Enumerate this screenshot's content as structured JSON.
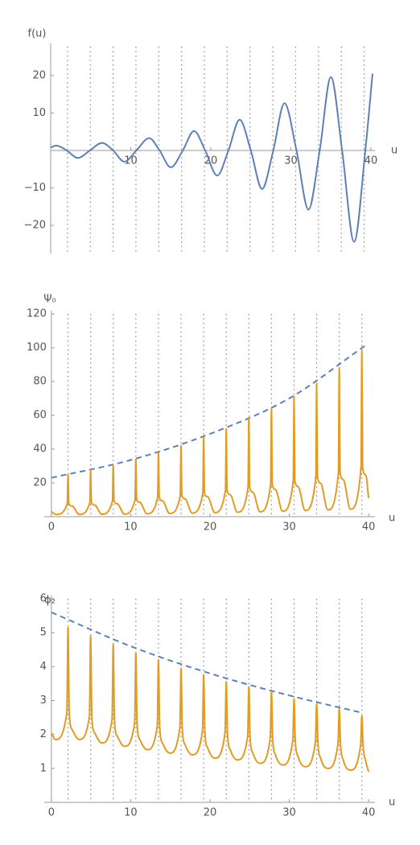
{
  "chart_data": [
    {
      "type": "line",
      "y_label": "f(u)",
      "x_label": "u",
      "xlim": [
        0,
        40.5
      ],
      "ylim": [
        -27.5,
        27.7
      ],
      "xticks": [
        10,
        20,
        30,
        40
      ],
      "yticks": [
        {
          "value": -20,
          "label": "−20"
        },
        {
          "value": -10,
          "label": "−10"
        },
        10,
        20
      ],
      "vlines": [
        2.1,
        4.95,
        7.8,
        10.65,
        13.5,
        16.35,
        19.2,
        22.05,
        24.9,
        27.75,
        30.6,
        33.45,
        36.3,
        39.15
      ],
      "series": [
        {
          "color": "#5e81b5",
          "dashed": false,
          "x": [
            0,
            0.7,
            2,
            3.4,
            4.9,
            6.4,
            7.8,
            9.2,
            10.7,
            12.3,
            13.6,
            15,
            16.5,
            17.9,
            19.3,
            20.8,
            22.2,
            23.6,
            25,
            26.4,
            27.8,
            29.2,
            30.7,
            32.2,
            33.6,
            35,
            36.4,
            37.9,
            39.3,
            40.2
          ],
          "values": [
            0.8,
            1.3,
            0,
            -2,
            0,
            2,
            0,
            -3,
            0,
            3.3,
            0,
            -4.5,
            0,
            5.2,
            0,
            -6.7,
            0,
            8.2,
            0,
            -10.3,
            0,
            12.6,
            0,
            -15.8,
            0,
            19.6,
            0,
            -24.4,
            0,
            20.5
          ]
        }
      ]
    },
    {
      "type": "line",
      "y_label": "Ψ₀",
      "x_label": "u",
      "xlim": [
        -0.9,
        40.8
      ],
      "ylim": [
        0,
        120
      ],
      "xticks": [
        0,
        10,
        20,
        30,
        40
      ],
      "yticks": [
        20,
        40,
        60,
        80,
        100,
        120
      ],
      "vlines": [
        2.1,
        4.95,
        7.8,
        10.65,
        13.5,
        16.35,
        19.2,
        22.05,
        24.9,
        27.75,
        30.6,
        33.45,
        36.3,
        39.15
      ],
      "series": [
        {
          "color": "#5e81b5",
          "dashed": true,
          "x": [
            0,
            10,
            20,
            30,
            39.5
          ],
          "values": [
            23,
            33.5,
            49,
            70,
            101
          ]
        },
        {
          "color": "#e19c24",
          "dashed": false,
          "x": [
            0,
            0.6,
            2.0,
            2.1,
            2.2,
            2.6,
            3.5,
            4.85,
            4.95,
            5.05,
            5.45,
            6.35,
            7.7,
            7.8,
            7.9,
            8.3,
            9.2,
            10.55,
            10.65,
            10.75,
            11.15,
            12.05,
            13.4,
            13.5,
            13.6,
            14,
            14.9,
            16.25,
            16.35,
            16.45,
            16.85,
            17.75,
            19.1,
            19.2,
            19.3,
            19.7,
            20.6,
            21.95,
            22.05,
            22.15,
            22.55,
            23.45,
            24.8,
            24.9,
            25,
            25.4,
            26.3,
            27.65,
            27.75,
            27.85,
            28.25,
            29.15,
            30.5,
            30.6,
            30.7,
            31.1,
            32,
            33.35,
            33.45,
            33.55,
            33.95,
            34.85,
            36.2,
            36.3,
            36.4,
            36.8,
            37.7,
            39.05,
            39.15,
            39.25,
            39.65,
            40
          ],
          "values": [
            3,
            1.3,
            7.5,
            25,
            7.5,
            6.3,
            1.3,
            8.3,
            27.5,
            8.3,
            6.9,
            1.4,
            9.2,
            30.5,
            9.2,
            7.6,
            1.5,
            10.2,
            34,
            10.2,
            8.5,
            1.7,
            11.3,
            37.5,
            11.3,
            9.4,
            1.9,
            12.6,
            42,
            12.6,
            10.5,
            2.1,
            14.1,
            47,
            14.1,
            11.8,
            2.4,
            15.6,
            52,
            15.6,
            13,
            2.6,
            17.4,
            58,
            17.4,
            14.5,
            2.9,
            19.2,
            64,
            19.2,
            16,
            3.2,
            21.3,
            71,
            21.3,
            17.8,
            3.6,
            23.7,
            79,
            23.7,
            19.8,
            4,
            26.4,
            88,
            26.4,
            22,
            4.4,
            29.4,
            98,
            29.4,
            24.5,
            11
          ]
        }
      ]
    },
    {
      "type": "line",
      "y_label": "ϕ₂",
      "x_label": "u",
      "xlim": [
        -0.9,
        40.8
      ],
      "ylim": [
        0,
        6
      ],
      "xticks": [
        0,
        10,
        20,
        30,
        40
      ],
      "yticks": [
        1,
        2,
        3,
        4,
        5,
        6
      ],
      "vlines": [
        2.1,
        4.95,
        7.8,
        10.65,
        13.5,
        16.35,
        19.2,
        22.05,
        24.9,
        27.75,
        30.6,
        33.45,
        36.3,
        39.15
      ],
      "series": [
        {
          "color": "#5e81b5",
          "dashed": true,
          "x": [
            0,
            10,
            20,
            30,
            39
          ],
          "values": [
            5.6,
            4.6,
            3.8,
            3.15,
            2.65
          ]
        },
        {
          "color": "#e19c24",
          "dashed": false,
          "x": [
            0,
            0.5,
            1.95,
            2.1,
            2.25,
            2.6,
            3.5,
            4.8,
            4.95,
            5.1,
            5.45,
            6.35,
            7.65,
            7.8,
            7.95,
            8.3,
            9.2,
            10.5,
            10.65,
            10.8,
            11.15,
            12.05,
            13.35,
            13.5,
            13.65,
            14,
            14.9,
            16.2,
            16.35,
            16.5,
            16.85,
            17.75,
            19.05,
            19.2,
            19.35,
            19.7,
            20.6,
            21.9,
            22.05,
            22.2,
            22.55,
            23.45,
            24.75,
            24.9,
            25.05,
            25.4,
            26.3,
            27.6,
            27.75,
            27.9,
            28.25,
            29.15,
            30.45,
            30.6,
            30.75,
            31.1,
            32,
            33.3,
            33.45,
            33.6,
            33.95,
            34.85,
            36.15,
            36.3,
            36.45,
            36.8,
            37.7,
            39,
            39.15,
            39.3,
            39.65,
            40
          ],
          "values": [
            2.05,
            1.85,
            2.65,
            5.15,
            2.65,
            2.15,
            1.85,
            2.55,
            4.9,
            2.55,
            2.05,
            1.75,
            2.45,
            4.65,
            2.45,
            1.95,
            1.65,
            2.35,
            4.4,
            2.35,
            1.85,
            1.55,
            2.25,
            4.2,
            2.25,
            1.75,
            1.45,
            2.2,
            3.95,
            2.2,
            1.7,
            1.4,
            2.1,
            3.75,
            2.1,
            1.6,
            1.3,
            2.05,
            3.55,
            2.05,
            1.55,
            1.25,
            1.95,
            3.4,
            1.95,
            1.45,
            1.15,
            1.9,
            3.25,
            1.9,
            1.4,
            1.1,
            1.85,
            3.05,
            1.85,
            1.35,
            1.05,
            1.8,
            2.9,
            1.8,
            1.3,
            1,
            1.75,
            2.75,
            1.75,
            1.25,
            0.95,
            1.7,
            2.55,
            1.7,
            1.2,
            0.9
          ]
        }
      ]
    }
  ]
}
